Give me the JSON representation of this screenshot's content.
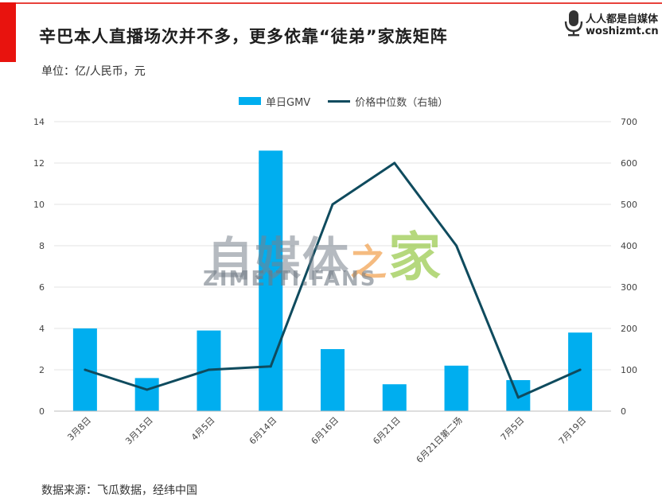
{
  "header": {
    "title": "辛巴本人直播场次并不多，更多依靠“徒弟”家族矩阵",
    "unit": "单位：亿/人民币，元"
  },
  "brand": {
    "name": "人人都是自媒体",
    "url": "woshizmt.cn",
    "icon": "microphone-icon"
  },
  "watermark": {
    "text_main": "自媒体",
    "text_zhi": "之",
    "text_jia": "家",
    "text_en": "ZIMEITI.FANS"
  },
  "footer": {
    "source": "数据来源：飞瓜数据，经纬中国"
  },
  "colors": {
    "bar": "#00aeef",
    "line": "#0f4b5e",
    "accent": "#e8130e",
    "grid": "#e3e3e3"
  },
  "chart_data": {
    "type": "bar",
    "title": "辛巴本人直播场次并不多，更多依靠“徒弟”家族矩阵",
    "categories": [
      "3月8日",
      "3月15日",
      "4月5日",
      "6月14日",
      "6月16日",
      "6月21日",
      "6月21日第二场",
      "7月5日",
      "7月19日"
    ],
    "series": [
      {
        "name": "单日GMV",
        "type": "bar",
        "axis": "left",
        "values": [
          4.0,
          1.6,
          3.9,
          12.6,
          3.0,
          1.3,
          2.2,
          1.5,
          3.8
        ]
      },
      {
        "name": "价格中位数（右轴）",
        "type": "line",
        "axis": "right",
        "values": [
          100,
          52,
          100,
          108,
          500,
          600,
          400,
          33,
          100
        ]
      }
    ],
    "y_left": {
      "min": 0,
      "max": 14,
      "ticks": [
        "0",
        "2",
        "4",
        "6",
        "8",
        "10",
        "12",
        "14"
      ]
    },
    "y_right": {
      "min": 0,
      "max": 700,
      "ticks": [
        "0",
        "100",
        "200",
        "300",
        "400",
        "500",
        "600",
        "700"
      ]
    },
    "grid": true,
    "legend_position": "top-center"
  }
}
